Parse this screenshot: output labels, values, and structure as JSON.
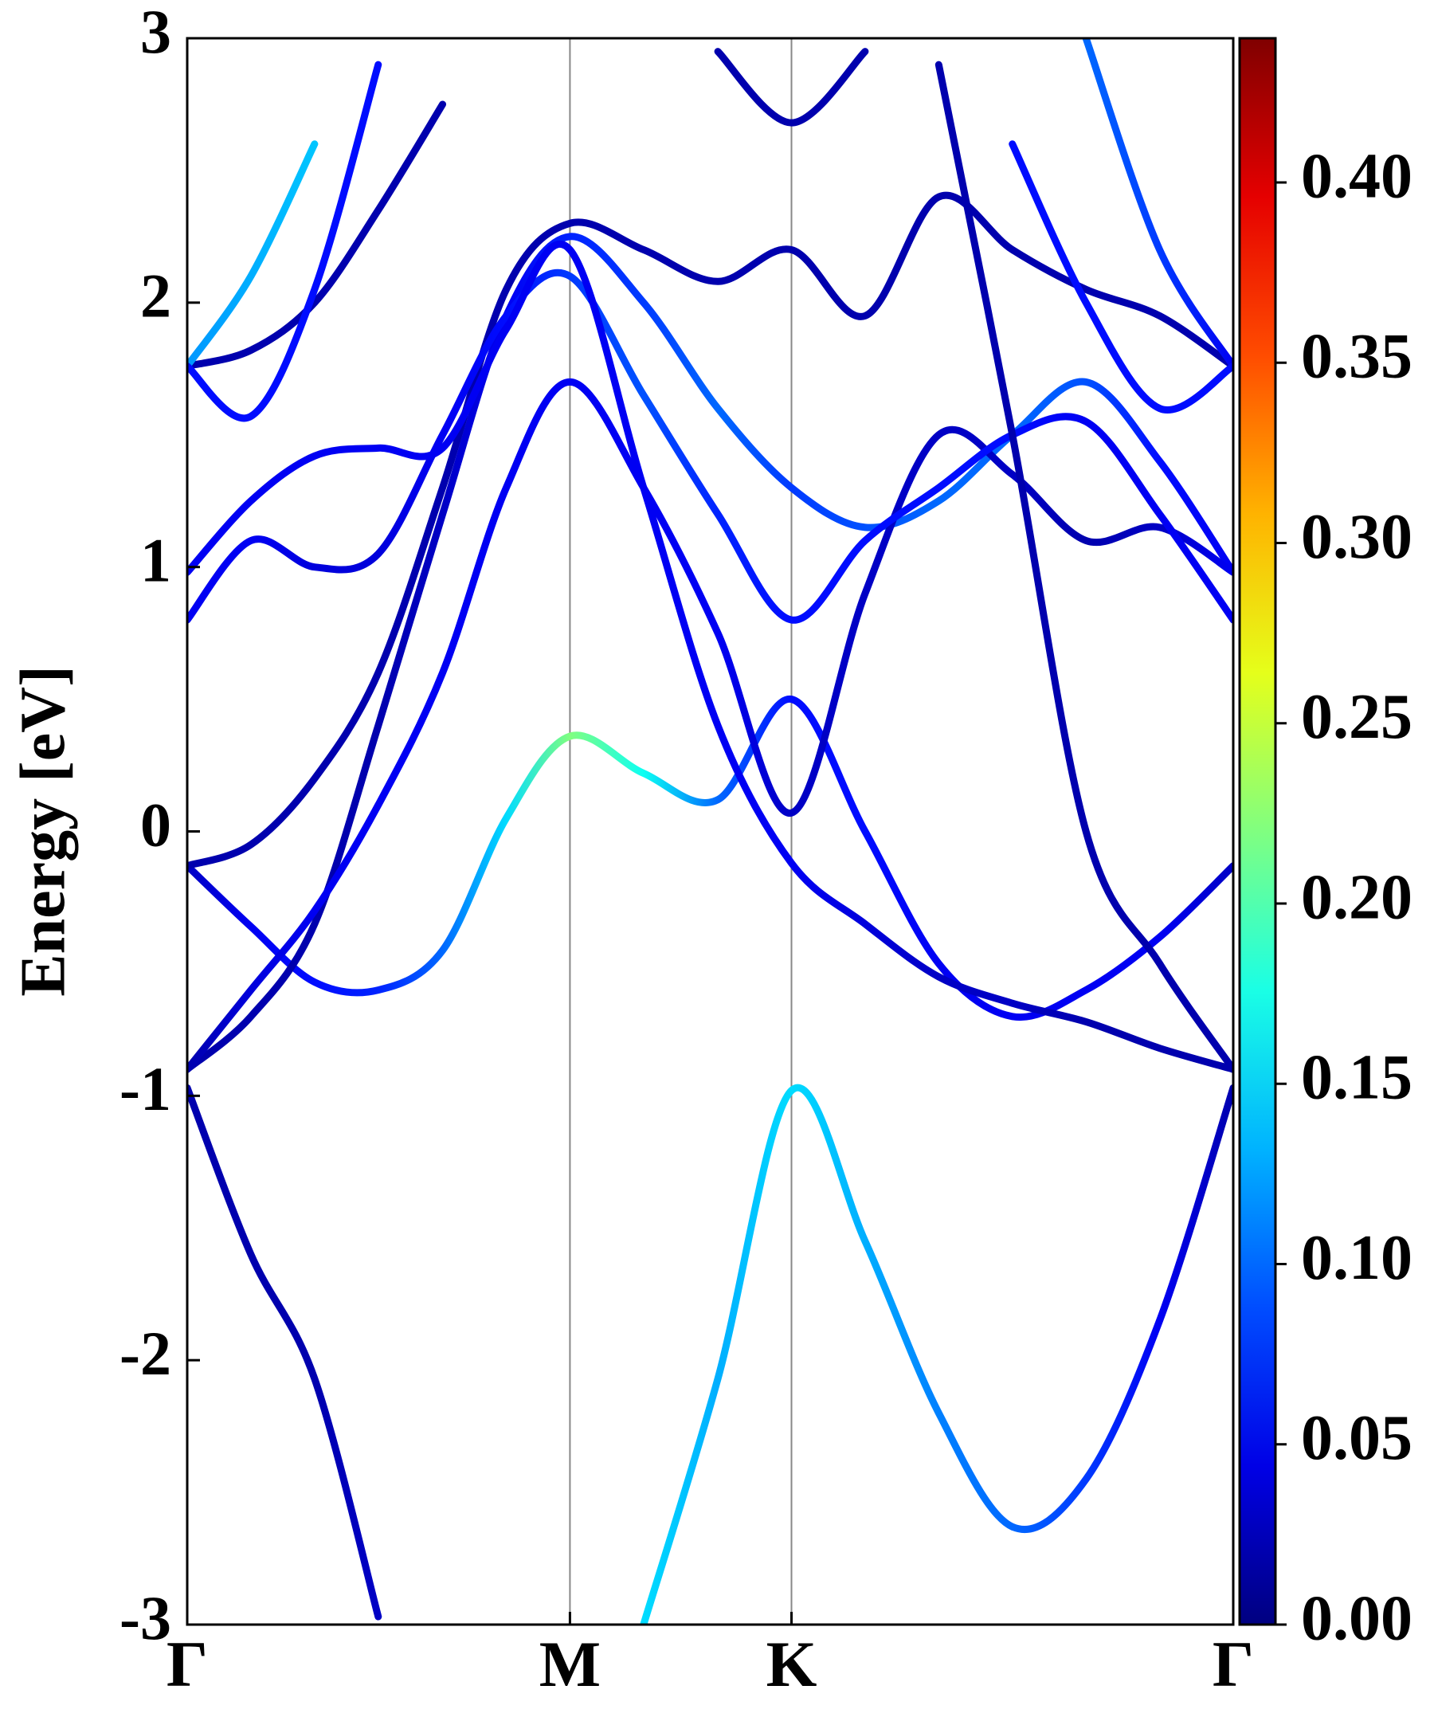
{
  "chart_data": {
    "type": "line",
    "y_label": "Energy [eV]",
    "x": [
      0,
      0.096,
      0.192,
      0.288,
      0.385,
      0.481,
      0.577,
      0.688,
      0.8,
      0.911,
      1.022,
      1.133,
      1.244,
      1.355,
      1.466,
      1.577
    ],
    "xlim": [
      0,
      1.577
    ],
    "xticks": [
      {
        "value": 0,
        "label": "Γ"
      },
      {
        "value": 0.577,
        "label": "M"
      },
      {
        "value": 0.911,
        "label": "K"
      },
      {
        "value": 1.577,
        "label": "Γ"
      }
    ],
    "xgrid": true,
    "ylim": [
      -3,
      3
    ],
    "yticks": [
      -3,
      -2,
      -1,
      0,
      1,
      2,
      3
    ],
    "colorbar": {
      "colormap": "jet",
      "lim": [
        0,
        0.44
      ],
      "ticks": [
        {
          "value": 0,
          "label": "0.00"
        },
        {
          "value": 0.05,
          "label": "0.05"
        },
        {
          "value": 0.1,
          "label": "0.10"
        },
        {
          "value": 0.15,
          "label": "0.15"
        },
        {
          "value": 0.2,
          "label": "0.20"
        },
        {
          "value": 0.25,
          "label": "0.25"
        },
        {
          "value": 0.3,
          "label": "0.30"
        },
        {
          "value": 0.35,
          "label": "0.35"
        },
        {
          "value": 0.4,
          "label": "0.40"
        }
      ]
    },
    "series": [
      {
        "values": [
          -0.97,
          -1.6,
          -2.07,
          -2.97,
          null,
          null,
          null,
          -3.0,
          -2.07,
          -0.98,
          -1.55,
          -2.2,
          -2.63,
          -2.45,
          -1.85,
          -0.97
        ],
        "weights": [
          0.02,
          0.02,
          0.02,
          0.03,
          null,
          null,
          null,
          0.15,
          0.13,
          0.15,
          0.13,
          0.11,
          0.1,
          0.08,
          0.05,
          0.02
        ]
      },
      {
        "values": [
          -0.13,
          -0.36,
          -0.57,
          -0.6,
          -0.45,
          0.05,
          0.36,
          0.22,
          0.12,
          0.5,
          0.0,
          -0.5,
          -0.7,
          -0.6,
          -0.4,
          -0.13
        ],
        "weights": [
          0.03,
          0.05,
          0.06,
          0.07,
          0.1,
          0.15,
          0.22,
          0.17,
          0.1,
          0.06,
          0.06,
          0.05,
          0.05,
          0.05,
          0.05,
          0.03
        ]
      },
      {
        "values": [
          -0.13,
          -0.05,
          0.2,
          0.6,
          1.3,
          2.05,
          2.3,
          2.2,
          2.08,
          2.2,
          1.95,
          2.4,
          2.2,
          2.05,
          1.95,
          1.76
        ],
        "weights": [
          0.02,
          0.02,
          0.02,
          0.02,
          0.02,
          0.02,
          0.02,
          0.02,
          0.02,
          0.02,
          0.02,
          0.02,
          0.02,
          0.02,
          0.02,
          0.02
        ]
      },
      {
        "values": [
          -0.9,
          -0.7,
          -0.35,
          0.4,
          1.2,
          1.95,
          2.25,
          2.0,
          1.6,
          1.3,
          1.15,
          1.25,
          1.5,
          1.7,
          1.4,
          0.98
        ],
        "weights": [
          0.02,
          0.02,
          0.02,
          0.02,
          0.03,
          0.05,
          0.07,
          0.08,
          0.1,
          0.08,
          0.09,
          0.1,
          0.1,
          0.09,
          0.06,
          0.05
        ]
      },
      {
        "values": [
          -0.9,
          -0.6,
          -0.3,
          0.1,
          0.6,
          1.3,
          1.7,
          1.3,
          0.75,
          0.07,
          0.9,
          1.5,
          1.35,
          1.1,
          1.15,
          0.98
        ],
        "weights": [
          0.02,
          0.04,
          0.05,
          0.05,
          0.05,
          0.05,
          0.05,
          0.05,
          0.05,
          0.03,
          0.03,
          0.03,
          0.03,
          0.02,
          0.03,
          0.05
        ]
      },
      {
        "values": [
          0.8,
          1.1,
          1.0,
          1.05,
          1.5,
          1.95,
          2.1,
          1.65,
          1.2,
          0.8,
          1.1,
          1.3,
          1.5,
          1.55,
          1.2,
          0.8
        ],
        "weights": [
          0.05,
          0.05,
          0.04,
          0.04,
          0.05,
          0.06,
          0.08,
          0.09,
          0.07,
          0.06,
          0.06,
          0.06,
          0.06,
          0.05,
          0.05,
          0.05
        ]
      },
      {
        "values": [
          0.98,
          1.25,
          1.42,
          1.45,
          1.45,
          1.9,
          2.2,
          1.3,
          0.4,
          -0.12,
          -0.35,
          -0.55,
          -0.65,
          -0.72,
          -0.82,
          -0.9
        ],
        "weights": [
          0.05,
          0.05,
          0.05,
          0.05,
          0.05,
          0.05,
          0.05,
          0.05,
          0.05,
          0.05,
          0.04,
          0.03,
          0.03,
          0.02,
          0.02,
          0.02
        ]
      },
      {
        "values": [
          null,
          null,
          null,
          null,
          null,
          null,
          null,
          null,
          null,
          null,
          null,
          2.9,
          1.5,
          0.0,
          -0.5,
          -0.9
        ],
        "weights": [
          null,
          null,
          null,
          null,
          null,
          null,
          null,
          null,
          null,
          null,
          null,
          0.02,
          0.02,
          0.02,
          0.02,
          0.02
        ]
      },
      {
        "values": [
          1.76,
          1.82,
          2.0,
          2.35,
          2.75,
          null,
          null,
          null,
          2.95,
          2.68,
          2.95,
          null,
          null,
          null,
          null,
          null
        ],
        "weights": [
          0.02,
          0.02,
          0.02,
          0.02,
          0.02,
          null,
          null,
          null,
          0.02,
          0.02,
          0.02,
          null,
          null,
          null,
          null,
          null
        ]
      },
      {
        "values": [
          1.76,
          2.1,
          2.6,
          null,
          null,
          null,
          null,
          null,
          null,
          null,
          null,
          null,
          null,
          3.0,
          2.2,
          1.76
        ],
        "weights": [
          0.12,
          0.13,
          0.14,
          null,
          null,
          null,
          null,
          null,
          null,
          null,
          null,
          null,
          null,
          0.1,
          0.08,
          0.05
        ]
      },
      {
        "values": [
          1.76,
          1.57,
          2.05,
          2.9,
          null,
          null,
          null,
          null,
          null,
          null,
          null,
          null,
          2.6,
          2.0,
          1.6,
          1.76
        ],
        "weights": [
          0.06,
          0.06,
          0.06,
          0.06,
          null,
          null,
          null,
          null,
          null,
          null,
          null,
          null,
          0.06,
          0.06,
          0.06,
          0.06
        ]
      }
    ]
  }
}
